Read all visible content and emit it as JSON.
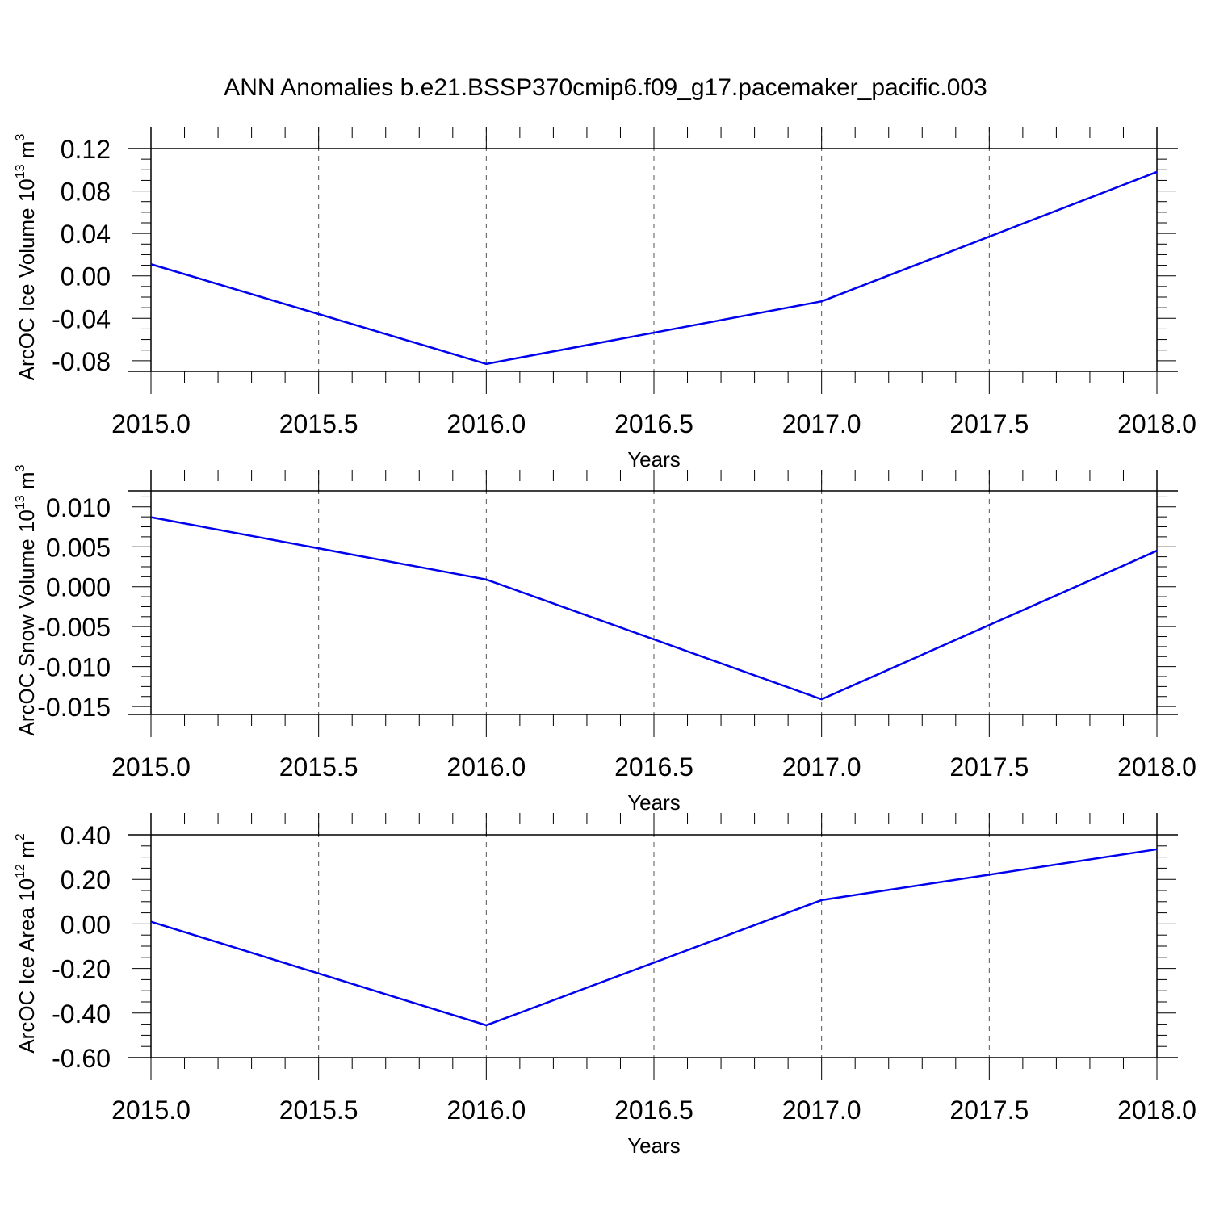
{
  "title": "ANN Anomalies b.e21.BSSP370cmip6.f09_g17.pacemaker_pacific.003",
  "chart_data": [
    {
      "type": "line",
      "ylabel": {
        "text": "ArcOC Ice Volume 10",
        "exp": "13",
        "unit": " m",
        "unit_exp": "3"
      },
      "xlabel": "Years",
      "x": [
        2015,
        2016,
        2017,
        2018
      ],
      "y": [
        0.011,
        -0.083,
        -0.024,
        0.098
      ],
      "xlim": [
        2015,
        2018
      ],
      "ylim": [
        -0.09,
        0.12
      ],
      "yticks": [
        0.12,
        0.08,
        0.04,
        0.0,
        -0.04,
        -0.08
      ],
      "yticklabels": [
        "0.12",
        "0.08",
        "0.04",
        "0.00",
        "-0.04",
        "-0.08"
      ],
      "xticks": [
        2015.0,
        2015.5,
        2016.0,
        2016.5,
        2017.0,
        2017.5,
        2018.0
      ],
      "xticklabels": [
        "2015.0",
        "2015.5",
        "2016.0",
        "2016.5",
        "2017.0",
        "2017.5",
        "2018.0"
      ],
      "grid": "vertical dashed",
      "line_color": "#0000ee"
    },
    {
      "type": "line",
      "ylabel": {
        "text": "ArcOC Snow Volume 10",
        "exp": "13",
        "unit": " m",
        "unit_exp": "3"
      },
      "xlabel": "Years",
      "x": [
        2015,
        2016,
        2017,
        2018
      ],
      "y": [
        0.0087,
        0.0009,
        -0.0141,
        0.0045
      ],
      "xlim": [
        2015,
        2018
      ],
      "ylim": [
        -0.016,
        0.012
      ],
      "yticks": [
        0.01,
        0.005,
        0.0,
        -0.005,
        -0.01,
        -0.015
      ],
      "yticklabels": [
        "0.010",
        "0.005",
        "0.000",
        "-0.005",
        "-0.010",
        "-0.015"
      ],
      "xticks": [
        2015.0,
        2015.5,
        2016.0,
        2016.5,
        2017.0,
        2017.5,
        2018.0
      ],
      "xticklabels": [
        "2015.0",
        "2015.5",
        "2016.0",
        "2016.5",
        "2017.0",
        "2017.5",
        "2018.0"
      ],
      "grid": "vertical dashed",
      "line_color": "#0000ee"
    },
    {
      "type": "line",
      "ylabel": {
        "text": "ArcOC Ice Area 10",
        "exp": "12",
        "unit": " m",
        "unit_exp": "2"
      },
      "xlabel": "Years",
      "x": [
        2015,
        2016,
        2017,
        2018
      ],
      "y": [
        0.01,
        -0.455,
        0.107,
        0.335
      ],
      "xlim": [
        2015,
        2018
      ],
      "ylim": [
        -0.6,
        0.4
      ],
      "yticks": [
        0.4,
        0.2,
        0.0,
        -0.2,
        -0.4,
        -0.6
      ],
      "yticklabels": [
        "0.40",
        "0.20",
        "0.00",
        "-0.20",
        "-0.40",
        "-0.60"
      ],
      "xticks": [
        2015.0,
        2015.5,
        2016.0,
        2016.5,
        2017.0,
        2017.5,
        2018.0
      ],
      "xticklabels": [
        "2015.0",
        "2015.5",
        "2016.0",
        "2016.5",
        "2017.0",
        "2017.5",
        "2018.0"
      ],
      "grid": "vertical dashed",
      "line_color": "#0000ee"
    }
  ]
}
